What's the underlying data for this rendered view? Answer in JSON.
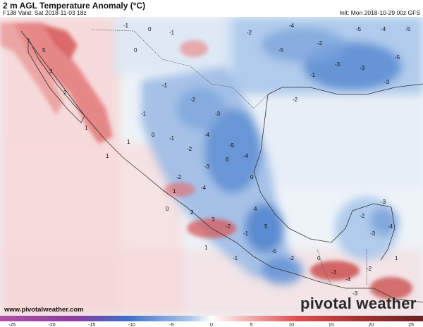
{
  "header": {
    "title": "2 m AGL Temperature Anomaly (°C)",
    "valid": "F138 Valid: Sat 2018-11-03 18z",
    "init": "Init: Mon 2018-10-29 00z GFS"
  },
  "footer": {
    "website": "www.pivotalweather.com",
    "logo_text": "pivotal weather"
  },
  "colorbar": {
    "tick_labels": [
      "-25",
      "-20",
      "-15",
      "-10",
      "-5",
      "0",
      "5",
      "10",
      "15",
      "20",
      "25"
    ],
    "colors": {
      "deep_negative": "#b24fa8",
      "negative": "#3d6fc8",
      "zero": "#ffffff",
      "positive": "#e05050",
      "deep_positive": "#8a2a2a"
    }
  },
  "map": {
    "ocean_color": "#eef3f8",
    "cool_color": "#8fb4e4",
    "warm_color": "#ec9a9a",
    "labels": [
      {
        "text": "-5"
      },
      {
        "text": "-4"
      },
      {
        "text": "-3"
      },
      {
        "text": "-2"
      },
      {
        "text": "-1"
      },
      {
        "text": "0"
      },
      {
        "text": "1"
      },
      {
        "text": "2"
      },
      {
        "text": "3"
      },
      {
        "text": "4"
      },
      {
        "text": "5"
      },
      {
        "text": "6"
      }
    ]
  }
}
